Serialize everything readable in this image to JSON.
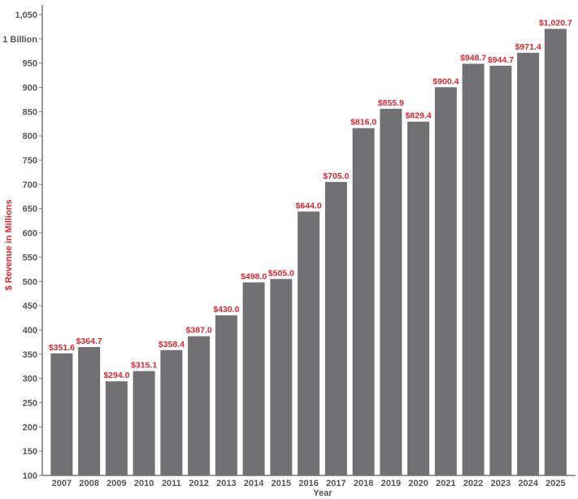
{
  "chart_data": {
    "type": "bar",
    "title": "",
    "xlabel": "Year",
    "ylabel": "$ Revenue in Millions",
    "categories": [
      "2007",
      "2008",
      "2009",
      "2010",
      "2011",
      "2012",
      "2013",
      "2014",
      "2015",
      "2016",
      "2017",
      "2018",
      "2019",
      "2020",
      "2021",
      "2022",
      "2023",
      "2024",
      "2025"
    ],
    "values": [
      351.6,
      364.7,
      294.0,
      315.1,
      358.4,
      387.0,
      430.0,
      498.0,
      505.0,
      644.0,
      705.0,
      816.0,
      855.9,
      829.4,
      900.4,
      948.7,
      944.7,
      971.4,
      1020.7
    ],
    "data_labels": [
      "$351.6",
      "$364.7",
      "$294.0",
      "$315.1",
      "$358.4",
      "$387.0",
      "$430.0",
      "$498.0",
      "$505.0",
      "$644.0",
      "$705.0",
      "$816.0",
      "$855.9",
      "$829.4",
      "$900.4",
      "$948.7",
      "$944.7",
      "$971.4",
      "$1,020.7"
    ],
    "ylim": [
      100,
      1050
    ],
    "yticks": [
      100,
      150,
      200,
      250,
      300,
      350,
      400,
      450,
      500,
      550,
      600,
      650,
      700,
      750,
      800,
      850,
      900,
      950,
      1000,
      1050
    ],
    "ytick_labels": [
      "100",
      "150",
      "200",
      "250",
      "300",
      "350",
      "400",
      "450",
      "500",
      "550",
      "600",
      "650",
      "700",
      "750",
      "800",
      "850",
      "900",
      "950",
      "1 Billion",
      "1,050"
    ],
    "grid": false,
    "legend": "none",
    "colors": {
      "bar": "#717073",
      "data_label": "#d7282f",
      "axis_title": "#d7282f",
      "xlabel": "#555555",
      "tick": "#555555",
      "axis": "#777777"
    }
  }
}
